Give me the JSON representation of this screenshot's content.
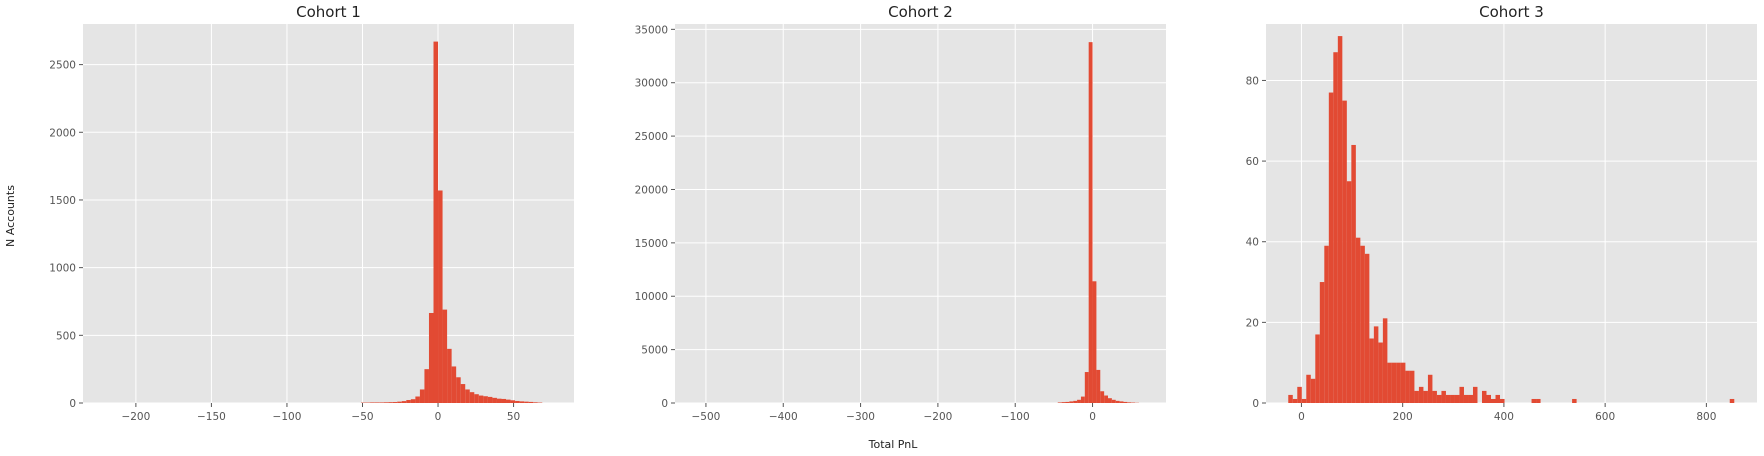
{
  "figure": {
    "xlabel": "Total PnL",
    "ylabel": "N Accounts"
  },
  "style": {
    "axes_bg": "#e5e5e5",
    "grid": "#ffffff",
    "bar": "#e24a33",
    "tick_color": "#555555"
  },
  "chart_data": [
    {
      "type": "bar",
      "title": "Cohort 1",
      "xlim": [
        -235,
        90
      ],
      "ylim": [
        0,
        2800
      ],
      "xticks": [
        -200,
        -150,
        -100,
        -50,
        0,
        50
      ],
      "xtick_labels": [
        "−200",
        "−150",
        "−100",
        "−50",
        "0",
        "50"
      ],
      "yticks": [
        0,
        500,
        1000,
        1500,
        2000,
        2500
      ],
      "ytick_labels": [
        "0",
        "500",
        "1000",
        "1500",
        "2000",
        "2500"
      ],
      "grid": true,
      "bin_width": 3,
      "bins_start": [
        -51,
        -48,
        -45,
        -42,
        -39,
        -36,
        -33,
        -30,
        -27,
        -24,
        -21,
        -18,
        -15,
        -12,
        -9,
        -6,
        -3,
        0,
        3,
        6,
        9,
        12,
        15,
        18,
        21,
        24,
        27,
        30,
        33,
        36,
        39,
        42,
        45,
        48,
        51,
        54,
        57,
        60,
        63,
        66
      ],
      "values": [
        3,
        3,
        4,
        4,
        4,
        5,
        6,
        7,
        10,
        14,
        22,
        28,
        48,
        100,
        250,
        665,
        2670,
        1570,
        690,
        400,
        270,
        190,
        140,
        100,
        80,
        65,
        55,
        50,
        45,
        38,
        32,
        30,
        25,
        20,
        15,
        12,
        10,
        8,
        5,
        3
      ]
    },
    {
      "type": "bar",
      "title": "Cohort 2",
      "xlim": [
        -540,
        95
      ],
      "ylim": [
        0,
        35500
      ],
      "xticks": [
        -500,
        -400,
        -300,
        -200,
        -100,
        0
      ],
      "xtick_labels": [
        "−500",
        "−400",
        "−300",
        "−200",
        "−100",
        "0"
      ],
      "yticks": [
        0,
        5000,
        10000,
        15000,
        20000,
        25000,
        30000,
        35000
      ],
      "ytick_labels": [
        "0",
        "5000",
        "10000",
        "15000",
        "20000",
        "25000",
        "30000",
        "35000"
      ],
      "grid": true,
      "bin_width": 5,
      "bins_start": [
        -45,
        -40,
        -35,
        -30,
        -25,
        -20,
        -15,
        -10,
        -5,
        0,
        5,
        10,
        15,
        20,
        25,
        30,
        35,
        40,
        45,
        50,
        55
      ],
      "values": [
        50,
        80,
        100,
        150,
        200,
        300,
        600,
        2900,
        33800,
        11400,
        3100,
        1100,
        700,
        450,
        300,
        200,
        150,
        100,
        60,
        40,
        20
      ]
    },
    {
      "type": "bar",
      "title": "Cohort 3",
      "xlim": [
        -70,
        900
      ],
      "ylim": [
        0,
        94
      ],
      "xticks": [
        0,
        200,
        400,
        600,
        800
      ],
      "xtick_labels": [
        "0",
        "200",
        "400",
        "600",
        "800"
      ],
      "yticks": [
        0,
        20,
        40,
        60,
        80
      ],
      "ytick_labels": [
        "0",
        "20",
        "40",
        "60",
        "80"
      ],
      "grid": true,
      "bin_width": 8.9,
      "bins_start": [
        -26,
        -17.1,
        -8.2,
        0.7,
        9.6,
        18.5,
        27.4,
        36.3,
        45.2,
        54.1,
        63,
        71.9,
        80.8,
        89.7,
        98.6,
        107.5,
        116.4,
        125.3,
        134.2,
        143.1,
        152,
        160.9,
        169.8,
        178.7,
        187.6,
        196.5,
        205.4,
        214.3,
        223.2,
        232.1,
        241,
        249.9,
        258.8,
        267.7,
        276.6,
        285.5,
        294.4,
        303.3,
        312.2,
        321.1,
        330,
        338.9,
        356.7,
        365.6,
        374.5,
        383.4,
        392.3,
        454.6,
        463.5,
        534.7,
        846.2
      ],
      "values": [
        2,
        1,
        4,
        1,
        7,
        6,
        17,
        30,
        39,
        77,
        87,
        91,
        75,
        55,
        64,
        41,
        39,
        37,
        16,
        19,
        15,
        21,
        10,
        10,
        10,
        10,
        8,
        8,
        3,
        4,
        3,
        7,
        3,
        2,
        3,
        2,
        2,
        2,
        4,
        2,
        2,
        4,
        3,
        2,
        1,
        2,
        1,
        1,
        1,
        1,
        1
      ]
    }
  ]
}
